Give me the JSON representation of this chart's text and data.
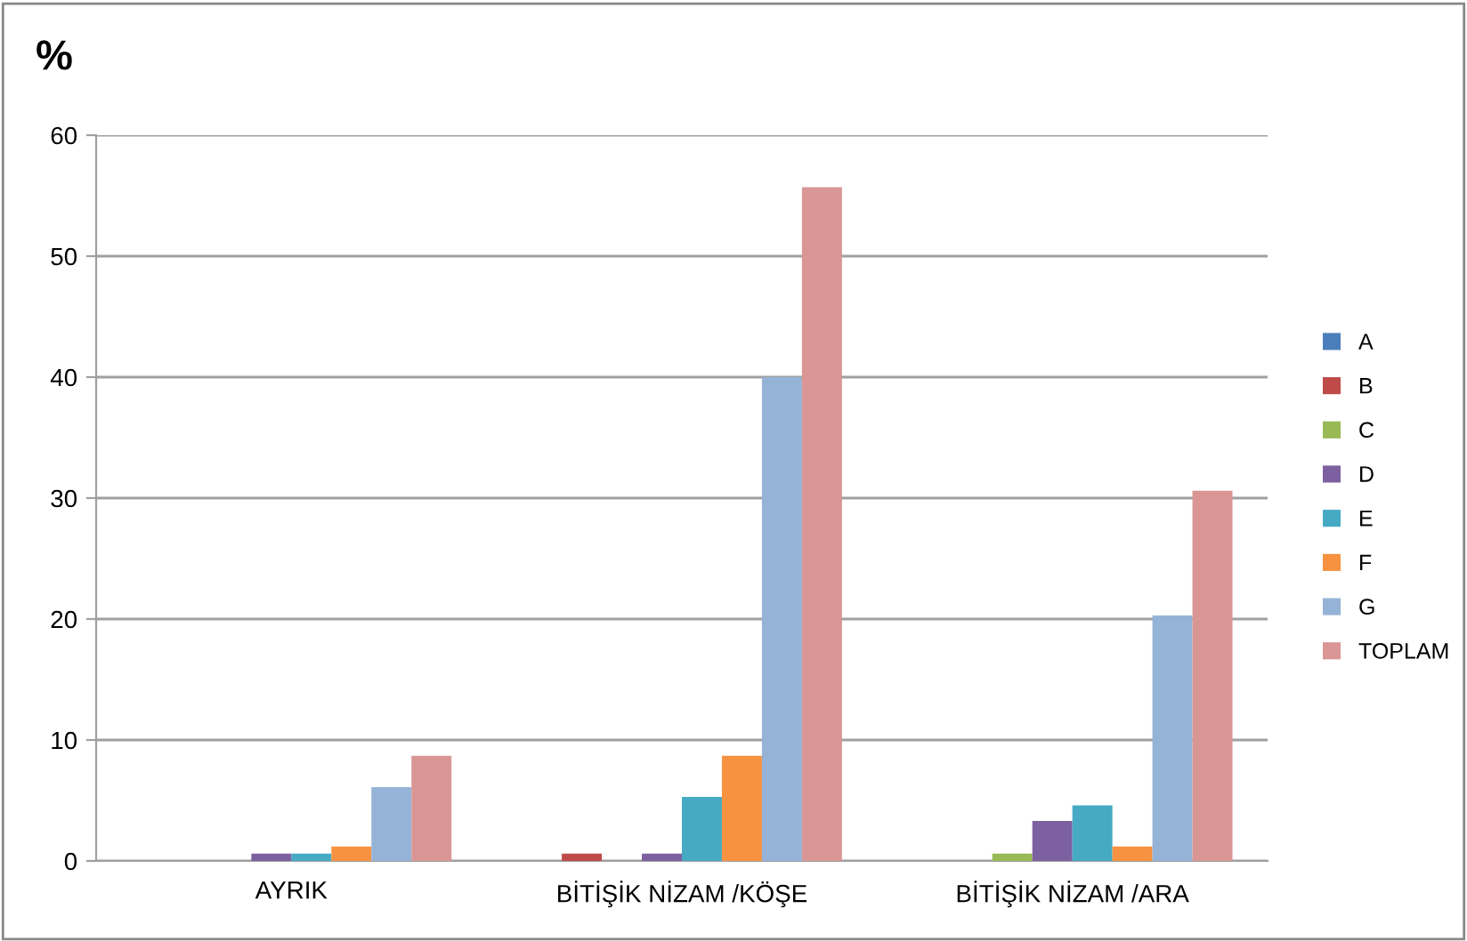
{
  "chart_data": {
    "type": "bar",
    "ylabel": "%",
    "categories": [
      "AYRIK",
      "BİTİŞİK NİZAM /KÖŞE",
      "BİTİŞİK NİZAM /ARA"
    ],
    "series": [
      {
        "name": "A",
        "color": "#4a7ebb",
        "values": [
          0,
          0,
          0
        ]
      },
      {
        "name": "B",
        "color": "#be4b48",
        "values": [
          0,
          0.6,
          0
        ]
      },
      {
        "name": "C",
        "color": "#98b954",
        "values": [
          0,
          0,
          0.6
        ]
      },
      {
        "name": "D",
        "color": "#7d60a0",
        "values": [
          0.6,
          0.6,
          3.3
        ]
      },
      {
        "name": "E",
        "color": "#46aac5",
        "values": [
          0.6,
          5.3,
          4.6
        ]
      },
      {
        "name": "F",
        "color": "#f69240",
        "values": [
          1.2,
          8.7,
          1.2
        ]
      },
      {
        "name": "G",
        "color": "#95b3d7",
        "values": [
          6.1,
          40.0,
          20.3
        ]
      },
      {
        "name": "TOPLAM",
        "color": "#d99694",
        "values": [
          8.7,
          55.7,
          30.6
        ]
      }
    ],
    "ylim": [
      0,
      60
    ],
    "yticks": [
      0,
      10,
      20,
      30,
      40,
      50,
      60
    ],
    "grid": "y",
    "legend": "right"
  }
}
